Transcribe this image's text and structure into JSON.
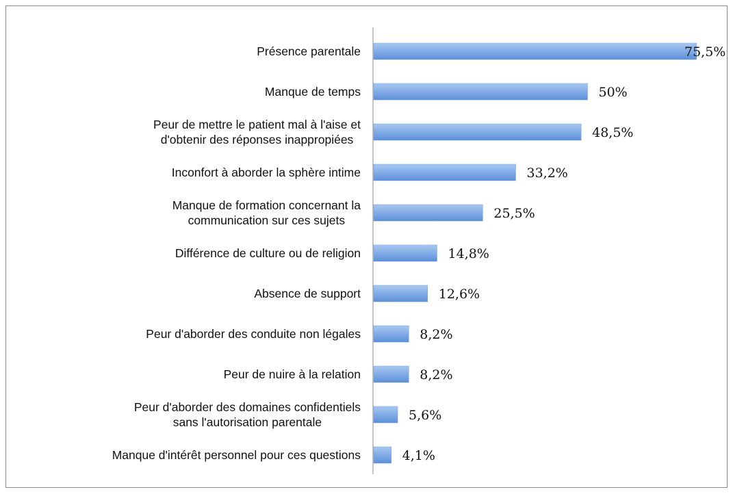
{
  "chart_data": {
    "type": "bar",
    "orientation": "horizontal",
    "categories": [
      "Présence parentale",
      "Manque de temps",
      "Peur de mettre le patient mal à l'aise et\nd'obtenir des réponses inappropiées",
      "Inconfort à aborder la sphère intime",
      "Manque de formation concernant la\ncommunication sur ces sujets",
      "Différence de culture ou de religion",
      "Absence de support",
      "Peur d'aborder des conduite non légales",
      "Peur de nuire à la relation",
      "Peur d'aborder des domaines confidentiels\nsans l'autorisation parentale",
      "Manque d'intérêt personnel pour ces questions"
    ],
    "values": [
      75.5,
      50,
      48.5,
      33.2,
      25.5,
      14.8,
      12.6,
      8.2,
      8.2,
      5.6,
      4.1
    ],
    "value_labels": [
      "75,5%",
      "50%",
      "48,5%",
      "33,2%",
      "25,5%",
      "14,8%",
      "12,6%",
      "8,2%",
      "8,2%",
      "5,6%",
      "4,1%"
    ],
    "color": "#6f9fe0"
  }
}
